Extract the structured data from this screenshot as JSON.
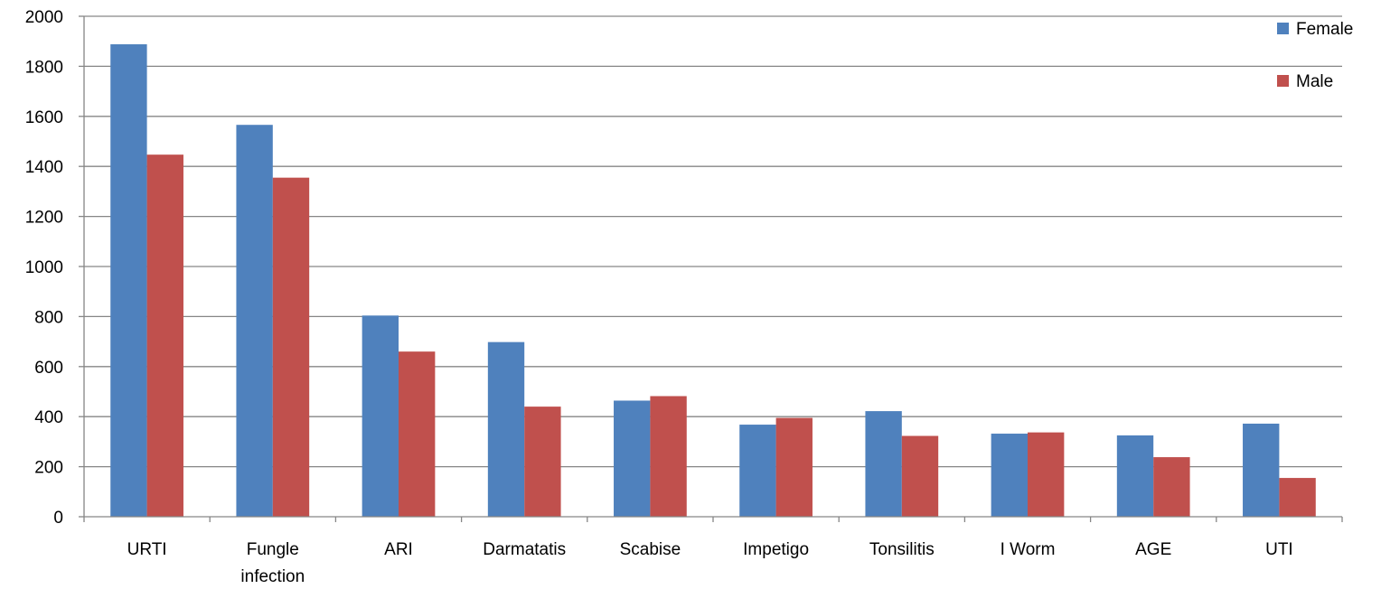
{
  "chart_data": {
    "type": "bar",
    "title": "",
    "xlabel": "",
    "ylabel": "",
    "categories": [
      [
        "URTI"
      ],
      [
        "Fungle",
        "infection"
      ],
      [
        "ARI"
      ],
      [
        "Darmatatis"
      ],
      [
        "Scabise"
      ],
      [
        "Impetigo"
      ],
      [
        "Tonsilitis"
      ],
      [
        "I Worm"
      ],
      [
        "AGE"
      ],
      [
        "UTI"
      ]
    ],
    "series": [
      {
        "name": "Female",
        "color": "#4f81bd",
        "values": [
          1888,
          1566,
          804,
          698,
          464,
          368,
          422,
          332,
          325,
          372
        ]
      },
      {
        "name": "Male",
        "color": "#c0504d",
        "values": [
          1447,
          1355,
          660,
          440,
          482,
          395,
          323,
          337,
          238,
          155
        ]
      }
    ],
    "ylim": [
      0,
      2000
    ],
    "yticks": [
      0,
      200,
      400,
      600,
      800,
      1000,
      1200,
      1400,
      1600,
      1800,
      2000
    ],
    "grid": true,
    "legend": "top-right"
  }
}
